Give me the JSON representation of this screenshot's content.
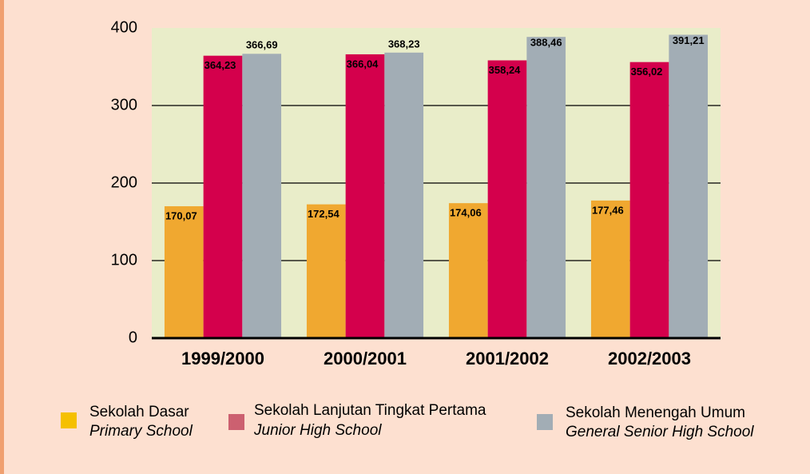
{
  "chart_data": {
    "type": "bar",
    "categories": [
      "1999/2000",
      "2000/2001",
      "2001/2002",
      "2002/2003"
    ],
    "series": [
      {
        "name": "Sekolah Dasar",
        "name_en": "Primary School",
        "color": "#f0a830",
        "legend_color": "#f5c000",
        "values": [
          170.07,
          172.54,
          174.06,
          177.46
        ],
        "value_labels": [
          "170,07",
          "172,54",
          "174,06",
          "177,46"
        ]
      },
      {
        "name": "Sekolah Lanjutan Tingkat Pertama",
        "name_en": "Junior High School",
        "color": "#d4004c",
        "legend_color": "#cc6070",
        "values": [
          364.23,
          366.04,
          358.24,
          356.02
        ],
        "value_labels": [
          "364,23",
          "366,04",
          "358,24",
          "356,02"
        ]
      },
      {
        "name": "Sekolah Menengah Umum",
        "name_en": "General Senior High School",
        "color": "#a2adb5",
        "legend_color": "#a2adb5",
        "values": [
          366.69,
          368.23,
          388.46,
          391.21
        ],
        "value_labels": [
          "366,69",
          "368,23",
          "388,46",
          "391,21"
        ]
      }
    ],
    "ylim": [
      0,
      400
    ],
    "yticks": [
      0,
      100,
      200,
      300,
      400
    ],
    "grid": true
  }
}
